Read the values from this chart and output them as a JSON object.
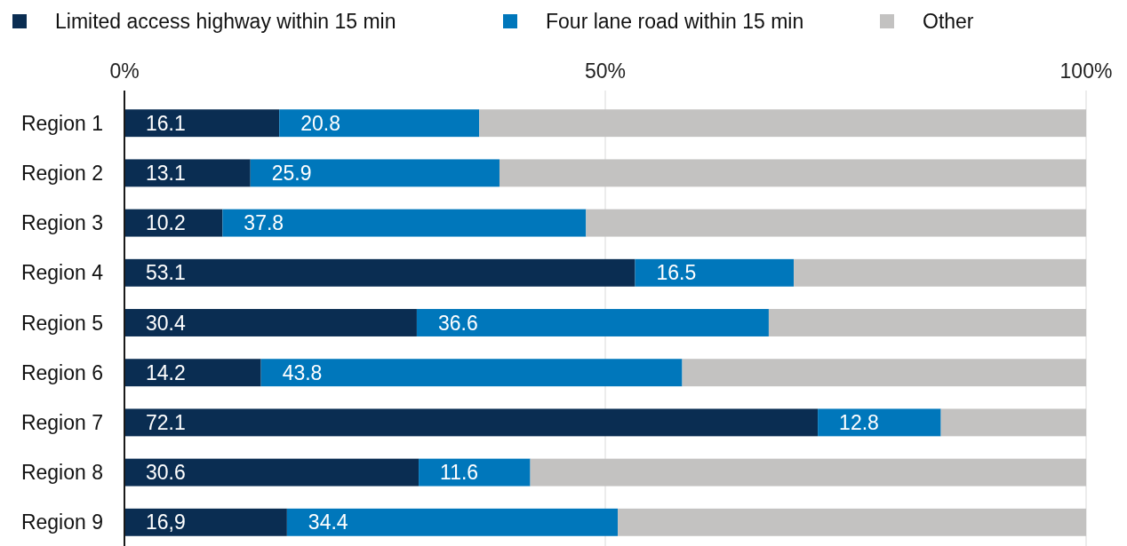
{
  "chart_data": {
    "type": "bar",
    "orientation": "horizontal",
    "stacked": true,
    "categories": [
      "Region 1",
      "Region 2",
      "Region 3",
      "Region 4",
      "Region 5",
      "Region 6",
      "Region 7",
      "Region 8",
      "Region 9"
    ],
    "series": [
      {
        "name": "Limited access highway within 15 min",
        "color": "#0a2d52",
        "values": [
          16.1,
          13.1,
          10.2,
          53.1,
          30.4,
          14.2,
          72.1,
          30.6,
          16.9
        ],
        "value_labels": [
          "16.1",
          "13.1",
          "10.2",
          "53.1",
          "30.4",
          "14.2",
          "72.1",
          "30.6",
          "16,9"
        ]
      },
      {
        "name": "Four lane road within 15 min",
        "color": "#0077bb",
        "values": [
          20.8,
          25.9,
          37.8,
          16.5,
          36.6,
          43.8,
          12.8,
          11.6,
          34.4
        ],
        "value_labels": [
          "20.8",
          "25.9",
          "37.8",
          "16.5",
          "36.6",
          "43.8",
          "12.8",
          "11.6",
          "34.4"
        ]
      },
      {
        "name": "Other",
        "color": "#c3c2c1",
        "values": [
          63.1,
          61.0,
          52.0,
          30.4,
          33.0,
          42.0,
          15.1,
          57.8,
          48.7
        ]
      }
    ],
    "xlim": [
      0,
      100
    ],
    "xticks": [
      {
        "value": 0,
        "label": "0%"
      },
      {
        "value": 50,
        "label": "50%"
      },
      {
        "value": 100,
        "label": "100%"
      }
    ],
    "grid": "x",
    "legend": "top left"
  }
}
